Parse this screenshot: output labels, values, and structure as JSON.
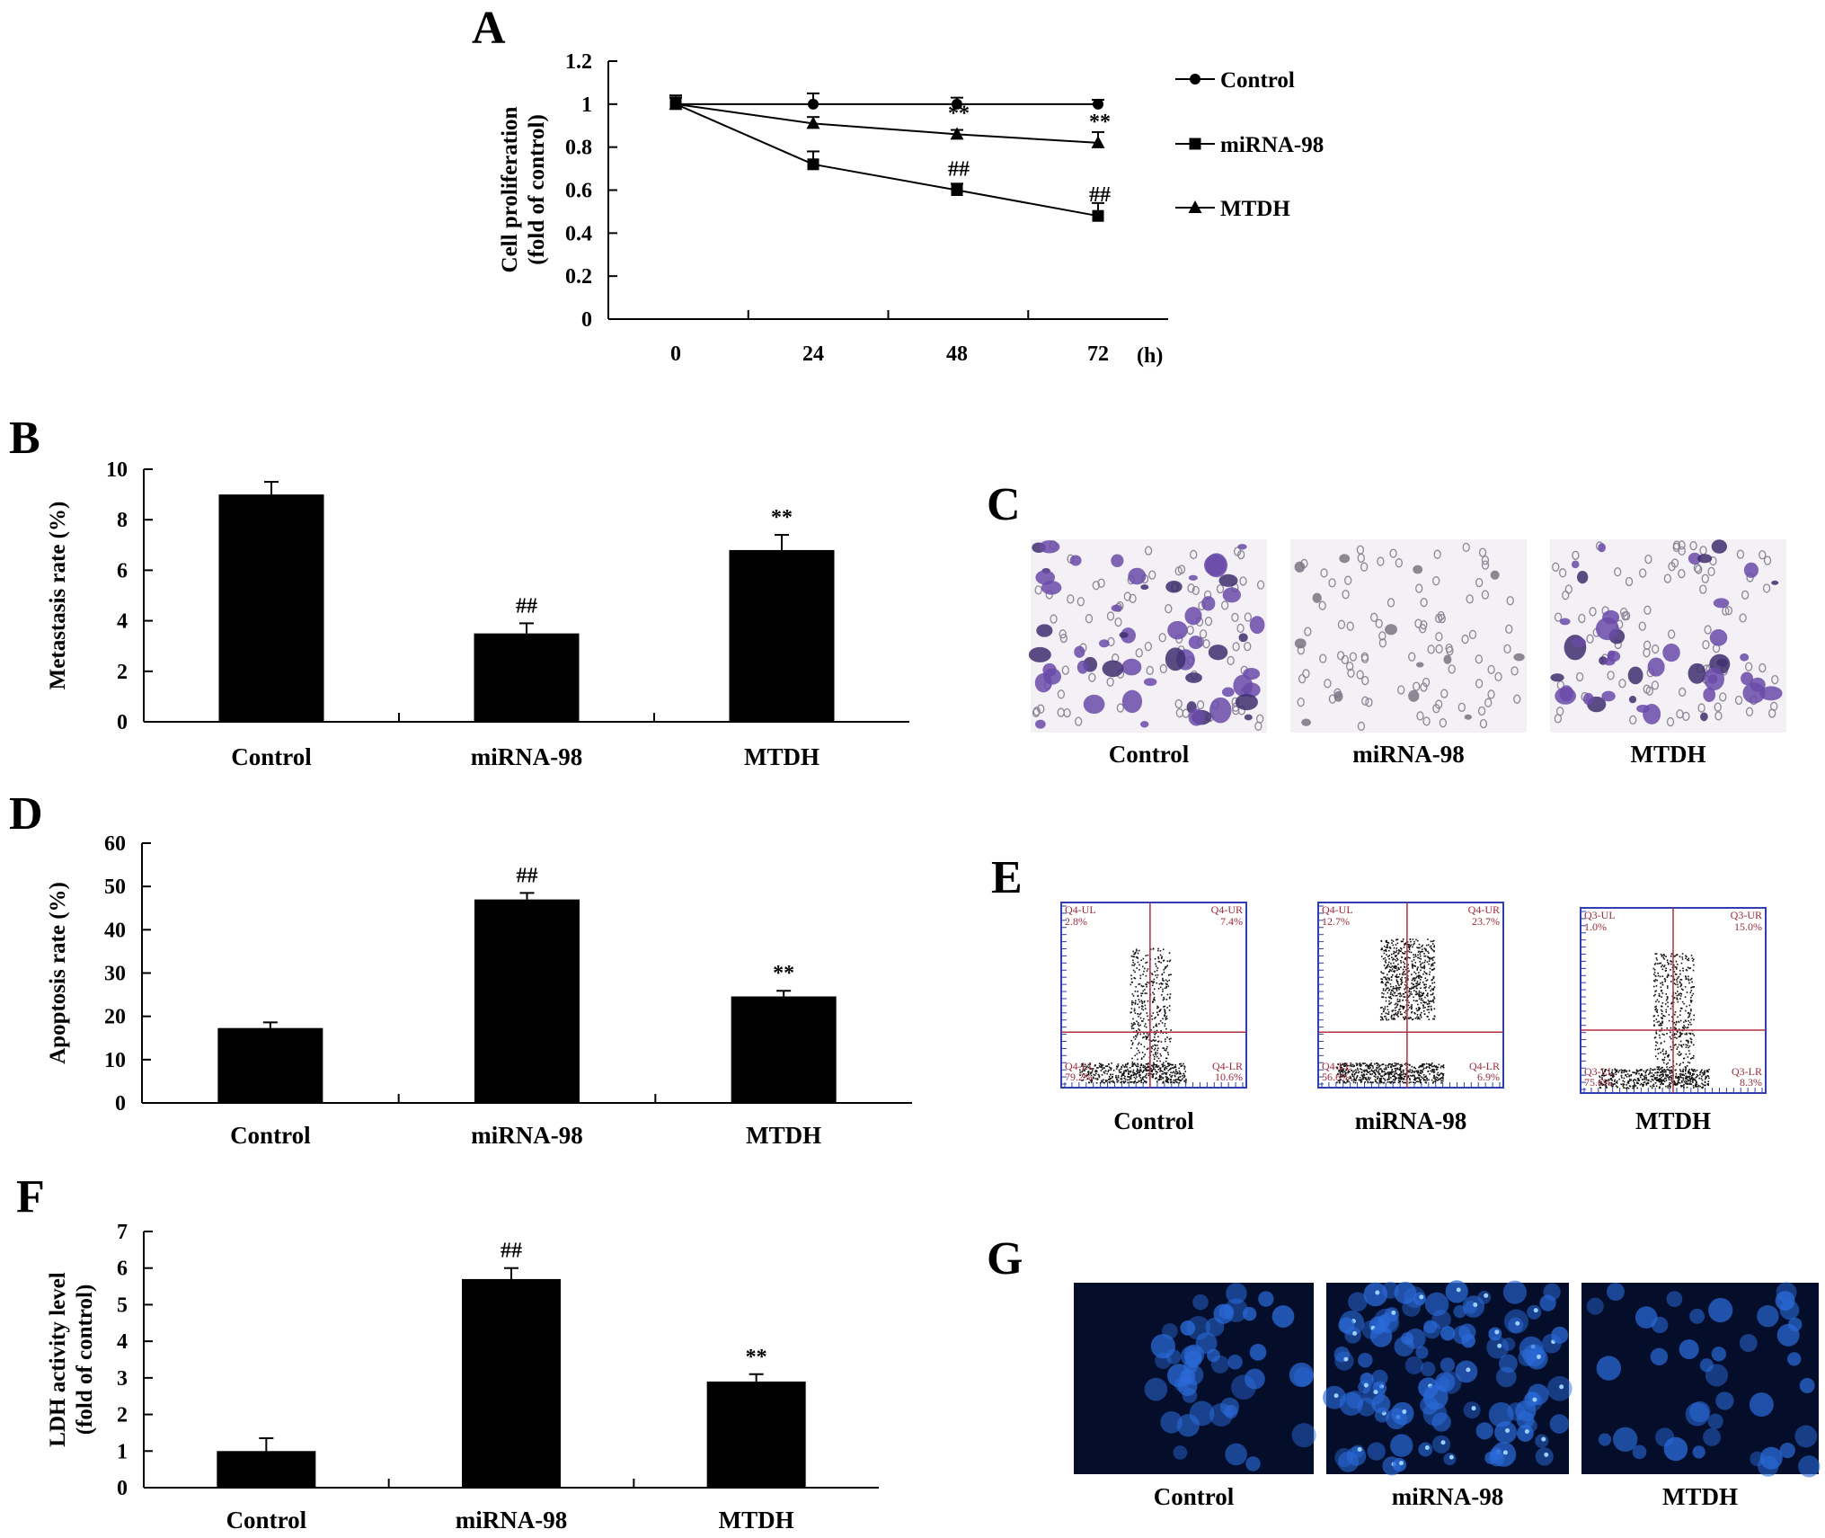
{
  "chart_data": [
    {
      "panel": "A",
      "type": "line",
      "ylabel": [
        "Cell proliferation",
        "(fold of control)"
      ],
      "x": [
        0,
        24,
        48,
        72
      ],
      "x_unit": "(h)",
      "ylim": [
        0,
        1.2
      ],
      "yticks": [
        "0",
        "0.2",
        "0.4",
        "0.6",
        "0.8",
        "1",
        "1.2"
      ],
      "legend_position": "right",
      "series": [
        {
          "name": "Control",
          "marker": "circle",
          "values": [
            1.0,
            1.0,
            1.0,
            1.0
          ],
          "errors": [
            0.04,
            0.05,
            0.03,
            0.02
          ],
          "marks": [
            "",
            "",
            "",
            ""
          ]
        },
        {
          "name": "miRNA-98",
          "marker": "square",
          "values": [
            1.0,
            0.72,
            0.6,
            0.48
          ],
          "errors": [
            0.04,
            0.06,
            0.03,
            0.06
          ],
          "marks": [
            "",
            "",
            "##",
            "##"
          ]
        },
        {
          "name": "MTDH",
          "marker": "triangle",
          "values": [
            1.0,
            0.91,
            0.86,
            0.82
          ],
          "errors": [
            0.03,
            0.03,
            0.02,
            0.05
          ],
          "marks": [
            "",
            "",
            "**",
            "**"
          ]
        }
      ]
    },
    {
      "panel": "B",
      "type": "bar",
      "ylabel": [
        "Metastasis rate (%)"
      ],
      "categories": [
        "Control",
        "miRNA-98",
        "MTDH"
      ],
      "values": [
        9.0,
        3.5,
        6.8
      ],
      "errors": [
        0.5,
        0.4,
        0.6
      ],
      "marks": [
        "",
        "##",
        "**"
      ],
      "ylim": [
        0,
        10
      ],
      "yticks": [
        "0",
        "2",
        "4",
        "6",
        "8",
        "10"
      ]
    },
    {
      "panel": "D",
      "type": "bar",
      "ylabel": [
        "Apoptosis rate (%)"
      ],
      "categories": [
        "Control",
        "miRNA-98",
        "MTDH"
      ],
      "values": [
        17.3,
        47.0,
        24.6
      ],
      "errors": [
        1.3,
        1.5,
        1.3
      ],
      "marks": [
        "",
        "##",
        "**"
      ],
      "ylim": [
        0,
        60
      ],
      "yticks": [
        "0",
        "10",
        "20",
        "30",
        "40",
        "50",
        "60"
      ]
    },
    {
      "panel": "F",
      "type": "bar",
      "ylabel": [
        "LDH activity level",
        "(fold of control)"
      ],
      "categories": [
        "Control",
        "miRNA-98",
        "MTDH"
      ],
      "values": [
        1.0,
        5.7,
        2.9
      ],
      "errors": [
        0.35,
        0.3,
        0.2
      ],
      "marks": [
        "",
        "##",
        "**"
      ],
      "ylim": [
        0,
        7
      ],
      "yticks": [
        "0",
        "1",
        "2",
        "3",
        "4",
        "5",
        "6",
        "7"
      ]
    }
  ],
  "image_panels": [
    {
      "panel": "C",
      "kind": "transwell-stain",
      "labels": [
        "Control",
        "miRNA-98",
        "MTDH"
      ]
    },
    {
      "panel": "E",
      "kind": "flow-cytometry",
      "labels": [
        "Control",
        "miRNA-98",
        "MTDH"
      ],
      "quadrants": [
        {
          "UL": "Q4-UL",
          "UL_val": "2.8%",
          "UR": "Q4-UR",
          "UR_val": "7.4%",
          "LL": "Q4-LL",
          "LL_val": "79.2%",
          "LR": "Q4-LR",
          "LR_val": "10.6%"
        },
        {
          "UL": "Q4-UL",
          "UL_val": "12.7%",
          "UR": "Q4-UR",
          "UR_val": "23.7%",
          "LL": "Q4-LL",
          "LL_val": "56.6%",
          "LR": "Q4-LR",
          "LR_val": "6.9%"
        },
        {
          "UL": "Q3-UL",
          "UL_val": "1.0%",
          "UR": "Q3-UR",
          "UR_val": "15.0%",
          "LL": "Q3-LL",
          "LL_val": "75.6%",
          "LR": "Q3-LR",
          "LR_val": "8.3%"
        }
      ]
    },
    {
      "panel": "G",
      "kind": "fluorescence",
      "labels": [
        "Control",
        "miRNA-98",
        "MTDH"
      ]
    }
  ],
  "colors": {
    "bar": "#000000",
    "flow_frame": "#2f3fb0",
    "flow_gate": "#b03040",
    "flow_label": "#9a2a3a",
    "stain_bg": "#f3f1f6",
    "stain_cell": "#6a4aa8",
    "fluor_bg": "#040d2a",
    "fluor_cell": "#2a6ad8"
  }
}
